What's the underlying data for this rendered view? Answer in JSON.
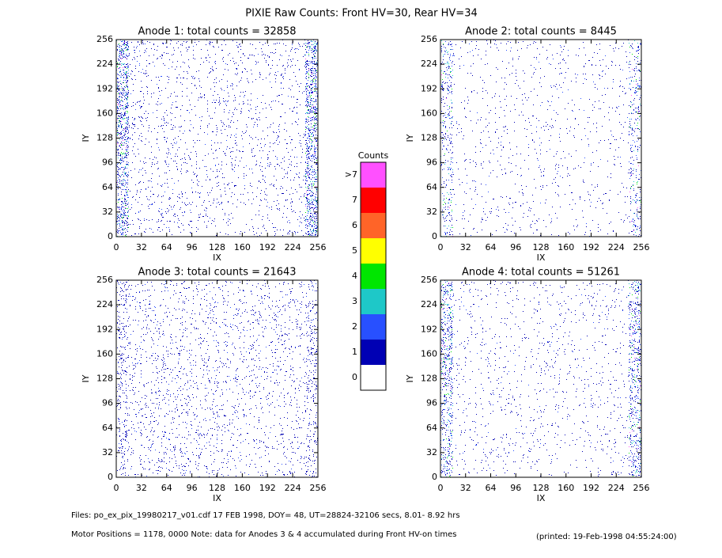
{
  "title": "PIXIE Raw Counts:  Front HV=30, Rear HV=34",
  "chart_data": [
    {
      "type": "heatmap",
      "title": "Anode 1: total counts = 32858",
      "x_label": "IX",
      "y_label": "IY",
      "xlim": [
        0,
        256
      ],
      "ylim": [
        0,
        256
      ],
      "xticks": [
        0,
        32,
        64,
        96,
        128,
        160,
        192,
        224,
        256
      ],
      "yticks": [
        0,
        32,
        64,
        96,
        128,
        160,
        192,
        224,
        256
      ]
    },
    {
      "type": "heatmap",
      "title": "Anode 2: total counts = 8445",
      "x_label": "IX",
      "y_label": "IY",
      "xlim": [
        0,
        256
      ],
      "ylim": [
        0,
        256
      ],
      "xticks": [
        0,
        32,
        64,
        96,
        128,
        160,
        192,
        224,
        256
      ],
      "yticks": [
        0,
        32,
        64,
        96,
        128,
        160,
        192,
        224,
        256
      ]
    },
    {
      "type": "heatmap",
      "title": "Anode 3: total counts = 21643",
      "x_label": "IX",
      "y_label": "IY",
      "xlim": [
        0,
        256
      ],
      "ylim": [
        0,
        256
      ],
      "xticks": [
        0,
        32,
        64,
        96,
        128,
        160,
        192,
        224,
        256
      ],
      "yticks": [
        0,
        32,
        64,
        96,
        128,
        160,
        192,
        224,
        256
      ]
    },
    {
      "type": "heatmap",
      "title": "Anode 4: total counts = 51261",
      "x_label": "IX",
      "y_label": "IY",
      "xlim": [
        0,
        256
      ],
      "ylim": [
        0,
        256
      ],
      "xticks": [
        0,
        32,
        64,
        96,
        128,
        160,
        192,
        224,
        256
      ],
      "yticks": [
        0,
        32,
        64,
        96,
        128,
        160,
        192,
        224,
        256
      ]
    }
  ],
  "colorbar": {
    "title": "Counts",
    "ticks": [
      0,
      1,
      2,
      3,
      4,
      5,
      6,
      7,
      {
        "value": 8,
        "label": ">7"
      }
    ],
    "colors": [
      "#ffffff",
      "#0000b4",
      "#2850ff",
      "#1ec8c8",
      "#00e600",
      "#ffff00",
      "#ff6428",
      "#ff0000",
      "#ff50ff"
    ]
  },
  "footer": {
    "files": "Files: po_ex_pix_19980217_v01.cdf    17 FEB 1998, DOY= 48, UT=28824-32106 secs,  8.01- 8.92 hrs",
    "motor": "Motor Positions = 1178, 0000   Note: data for Anodes 3 & 4 accumulated during Front HV-on times",
    "printed": "(printed: 19-Feb-1998 04:55:24:00)"
  }
}
